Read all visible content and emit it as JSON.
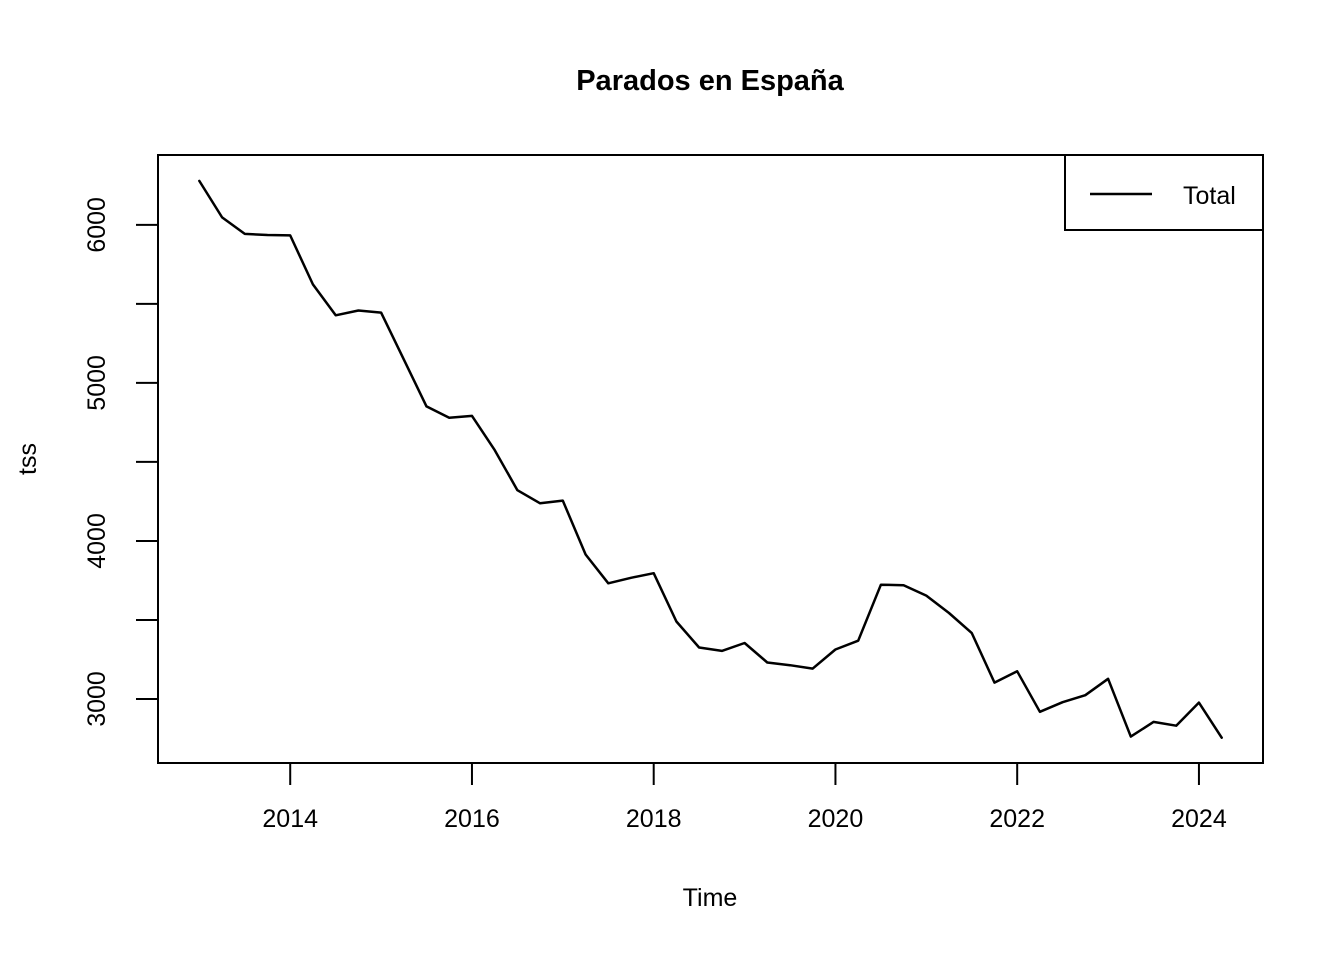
{
  "chart_data": {
    "type": "line",
    "title": "Parados en España",
    "xlabel": "Time",
    "ylabel": "tss",
    "grid": false,
    "background_color": "#ffffff",
    "axis_color": "#000000",
    "xlim": [
      2012.545,
      2024.705
    ],
    "ylim": [
      2595,
      6442
    ],
    "x_ticks": [
      2014,
      2016,
      2018,
      2020,
      2022,
      2024
    ],
    "y_ticks_labeled": [
      3000,
      4000,
      5000,
      6000
    ],
    "y_ticks_unlabeled": [
      3500,
      4500,
      5500
    ],
    "legend": {
      "position": "topright",
      "entries": [
        {
          "label": "Total",
          "line_color": "#000000"
        }
      ]
    },
    "series": [
      {
        "name": "Total",
        "color": "#000000",
        "x": [
          2013.0,
          2013.25,
          2013.5,
          2013.75,
          2014.0,
          2014.25,
          2014.5,
          2014.75,
          2015.0,
          2015.25,
          2015.5,
          2015.75,
          2016.0,
          2016.25,
          2016.5,
          2016.75,
          2017.0,
          2017.25,
          2017.5,
          2017.75,
          2018.0,
          2018.25,
          2018.5,
          2018.75,
          2019.0,
          2019.25,
          2019.5,
          2019.75,
          2020.0,
          2020.25,
          2020.5,
          2020.75,
          2021.0,
          2021.25,
          2021.5,
          2021.75,
          2022.0,
          2022.25,
          2022.5,
          2022.75,
          2023.0,
          2023.25,
          2023.5,
          2023.75,
          2024.0,
          2024.25
        ],
        "values": [
          6278,
          6047,
          5943,
          5936,
          5933,
          5623,
          5428,
          5458,
          5445,
          5149,
          4851,
          4780,
          4791,
          4575,
          4321,
          4238,
          4255,
          3914,
          3732,
          3767,
          3796,
          3490,
          3326,
          3304,
          3354,
          3231,
          3214,
          3192,
          3313,
          3369,
          3723,
          3720,
          3654,
          3544,
          3417,
          3104,
          3175,
          2919,
          2980,
          3024,
          3128,
          2762,
          2855,
          2831,
          2977,
          2755
        ]
      }
    ]
  }
}
